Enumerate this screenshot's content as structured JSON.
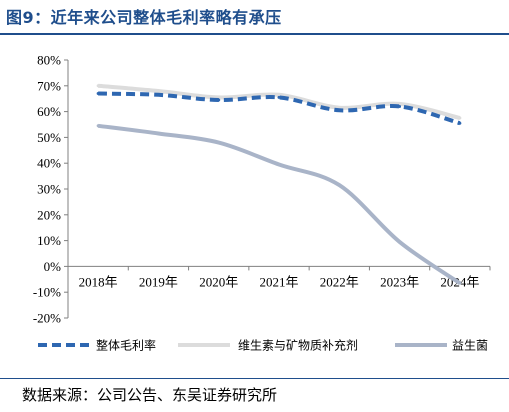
{
  "figure_title": "图9：近年来公司整体毛利率略有承压",
  "source_note": "数据来源：公司公告、东吴证券研究所",
  "chart_data": {
    "type": "line",
    "categories": [
      "2018年",
      "2019年",
      "2020年",
      "2021年",
      "2022年",
      "2023年",
      "2024年"
    ],
    "series": [
      {
        "name": "整体毛利率",
        "values": [
          67,
          66.5,
          64.5,
          65.5,
          60.5,
          62,
          55.5
        ],
        "color": "#2e67b1",
        "style": "dashed"
      },
      {
        "name": "维生素与矿物质补充剂",
        "values": [
          70,
          68,
          65.5,
          66.5,
          61.5,
          63,
          57.5
        ],
        "color": "#dcdcdc",
        "style": "solid"
      },
      {
        "name": "益生菌",
        "values": [
          54.5,
          51.5,
          48,
          39.5,
          31.5,
          9.5,
          -6.5
        ],
        "color": "#a9b4c8",
        "style": "solid"
      }
    ],
    "yticks": [
      "80%",
      "70%",
      "60%",
      "50%",
      "40%",
      "30%",
      "20%",
      "10%",
      "0%",
      "-10%",
      "-20%"
    ],
    "ylim": [
      -20,
      80
    ],
    "grid": false,
    "legend_position": "bottom"
  }
}
